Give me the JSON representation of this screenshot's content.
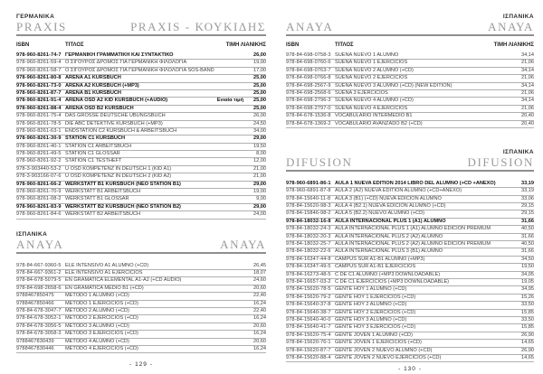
{
  "columns": {
    "isbn": "ISBN",
    "title": "ΤΙΤΛΟΣ",
    "price": "ΤΙΜΗ ΛΙΑΝΙΚΗΣ"
  },
  "accent_colors": {
    "header_title": "#9a9a9a",
    "rule": "#8f8f8f",
    "row_line": "#b0b0b0"
  },
  "pages": [
    {
      "number": "- 129 -",
      "sections": [
        {
          "id": "praxis-german",
          "left_small": "ΓΕΡΜΑΝΙΚΑ",
          "left_big": "PRAXIS",
          "right_small": "",
          "right_big": "PRAXIS - ΚΟΥΚΙΔΗΣ",
          "show_columns": true,
          "rows": [
            {
              "isbn": "978-960-8261-74-7",
              "title": "ΓΕΡΜΑΝΙΚΗ ΓΡΑΜΜΑΤΙΚΗ ΚΑΙ ΣΥΝΤΑΚΤΙΚΟ",
              "price": "26,00",
              "bold": true
            },
            {
              "isbn": "978-960-8261-59-4",
              "title": "Ο ΣΙΓΟΥΡΟΣ ΔΡΟΜΟΣ ΓΙΑ ΓΕΡΜΑΝΙΚΗ ΦΙΛΟΛΟΓΙΑ",
              "price": "19,00"
            },
            {
              "isbn": "978-960-8261-58-7",
              "title": "Ο ΣΙΓΟΥΡΟΣ ΔΡΟΜΟΣ ΓΙΑ ΓΕΡΜΑΝΙΚΗ ΦΙΛΟΛΟΓΙΑ SOS-BAND",
              "price": "17,00"
            },
            {
              "isbn": "978-960-8261-80-8",
              "title": "ARENA A1 KURSBUCH",
              "price": "25,00",
              "bold": true
            },
            {
              "isbn": "978-960-8261-73-0",
              "title": "ARENA A2 KURSBUCH (+MP3)",
              "price": "25,00",
              "bold": true
            },
            {
              "isbn": "978-960-8261-87-7",
              "title": "ARENA B1 KURSBUCH",
              "price": "25,00",
              "bold": true
            },
            {
              "isbn": "978-960-8261-91-4",
              "title": "ARENA ÖSD A2 KID KURSBUCH (+AUDIO)",
              "note": "Ενιαία τιμή",
              "price": "25,00",
              "bold": true
            },
            {
              "isbn": "978-960-8261-88-4",
              "title": "ARENA ÖSD B2 KURSBUCH",
              "price": "25,00",
              "bold": true
            },
            {
              "isbn": "978-960-8261-75-4",
              "title": "DAS GROSSE DEUTSCHE ÜBUNGSBUCH",
              "price": "26,00"
            },
            {
              "isbn": "978-960-8261-78-5",
              "title": "DIE ABC DETEKTIVE KURSBUCH (+MP3)",
              "price": "24,50"
            },
            {
              "isbn": "978-960-8261-63-1",
              "title": "ENDSTATION C2 KURSBUCH & ARBEITSBUCH",
              "price": "34,00"
            },
            {
              "isbn": "978-960-8261-30-9",
              "title": "STATION C1 KURSBUCH",
              "price": "29,00",
              "bold": true
            },
            {
              "isbn": "978-960-8261-40-1",
              "title": "STATION C1 ARBEITSBUCH",
              "price": "19,50"
            },
            {
              "isbn": "978-960-8261-49-5",
              "title": "STATION C1 GLOSSAR",
              "price": "8,00"
            },
            {
              "isbn": "978-960-8261-92-2",
              "title": "STATION C1 TESTHEFT",
              "price": "12,00"
            },
            {
              "isbn": "978-3-903440-53-2",
              "title": "Ü ÖSD KOMPETENZ IN DEUTSCH 1 (KID A1)",
              "price": "21,00"
            },
            {
              "isbn": "978-3-903166-07-6",
              "title": "Ü ÖSD KOMPETENZ IN DEUTSCH 2 (KID A2)",
              "price": "21,00"
            },
            {
              "isbn": "978-960-8261-66-2",
              "title": "WERKSTATT B1 KURSBUCH (ΝΕΟ STATION B1)",
              "price": "29,00",
              "bold": true
            },
            {
              "isbn": "978-960-8261-70-9",
              "title": "WERKSTATT B1 ARBEITSBUCH",
              "price": "19,00"
            },
            {
              "isbn": "978-960-8261-08-2",
              "title": "WERKSTATT B1 GLOSSAR",
              "price": "9,00"
            },
            {
              "isbn": "978-960-8261-83-9",
              "title": "WERKSTATT B2 KURSBUCH (ΝΕΟ STATION B2)",
              "price": "29,00",
              "bold": true
            },
            {
              "isbn": "978-960-8261-84-6",
              "title": "WERKSTATT B2 ARBEITSBUCH",
              "price": "24,00"
            }
          ]
        },
        {
          "id": "anaya-spanish-left",
          "left_small": "ΙΣΠΑΝΙΚΑ",
          "left_big": "ANAYA",
          "right_small": "",
          "right_big": "ΑΝΑΥΑ",
          "show_columns": false,
          "rows": [
            {
              "isbn": "978-84-667-9360-5",
              "title": "ELE INTENSIVO A1 ALUMNO (+CD)",
              "price": "26,45"
            },
            {
              "isbn": "978-84-667-9361-2",
              "title": "ELE INTENSIVO A1 EJERCICIOS",
              "price": "18,07"
            },
            {
              "isbn": "978-84-678-5079-5",
              "title": "EN GRAMATICA ELEMENTAL A1-A2 (+CD AUDIO)",
              "price": "24,60"
            },
            {
              "isbn": "978-84-698-2658-6",
              "title": "EN GRAMATICA MEDIO B1 (+CD)",
              "price": "20,60"
            },
            {
              "isbn": "9788467850475",
              "title": "METODO 1 ALUMNO (+CD)",
              "price": "22,40"
            },
            {
              "isbn": "9788467850466",
              "title": "METODO 1 EJERCICIOS (+CD)",
              "price": "16,24"
            },
            {
              "isbn": "978-84-678-3047-7",
              "title": "METODO 2 ALUMNO (+CD)",
              "price": "22,40"
            },
            {
              "isbn": "978-84-678-3052-1",
              "title": "METODO 2 EJERCICIOS (+CD)",
              "price": "16,24"
            },
            {
              "isbn": "978-84-678-3056-5",
              "title": "METODO 3 ALUMNO (+CD)",
              "price": "20,60"
            },
            {
              "isbn": "978-84-678-3058-3",
              "title": "METODO 3 EJERCICIOS (+CD)",
              "price": "16,24"
            },
            {
              "isbn": "9788467830439",
              "title": "METODO 4 ALUMNO (+CD)",
              "price": "20,60"
            },
            {
              "isbn": "9788467830446",
              "title": "METODO 4 EJERCICIOS (+CD)",
              "price": "16,24"
            }
          ]
        }
      ]
    },
    {
      "number": "- 130 -",
      "sections": [
        {
          "id": "anaya-spanish-right",
          "left_small": "",
          "left_big": "ANAYA",
          "right_small": "ΙΣΠΑΝΙΚΑ",
          "right_big": "ΑΝΑΥΑ",
          "show_columns": true,
          "rows": [
            {
              "isbn": "978-84-698-0758-3",
              "title": "SUENA NUEVO 1 ALUMNO",
              "price": "34,14"
            },
            {
              "isbn": "978-84-698-0760-6",
              "title": "SUENA NUEVO 1 EJERCICIOS",
              "price": "21,06"
            },
            {
              "isbn": "978-84-698-0763-7",
              "title": "SUENA NUEVO 2 ALUMNO (+CD)",
              "price": "34,14"
            },
            {
              "isbn": "978-84-698-0766-8",
              "title": "SUENA NUEVO 2 EJERCICIOS",
              "price": "21,06"
            },
            {
              "isbn": "978-84-698-2567-9",
              "title": "SUENA NUEVO 3 ALUMNO (+CD)  (NEW EDITION)",
              "price": "34,14"
            },
            {
              "isbn": "978-84-698-2568-6",
              "title": "SUENA 3 EJERCICIOS",
              "price": "21,06"
            },
            {
              "isbn": "978-84-698-2796-3",
              "title": "SUENA NUEVO 4 ALUMNO (+CD)",
              "price": "34,14"
            },
            {
              "isbn": "978-84-698-2797-0",
              "title": "SUENA NUEVO 4 EJERCICIOS",
              "price": "21,06"
            },
            {
              "isbn": "978-84-678-1536-8",
              "title": "VOCABULARIO INTERMEDIO B1",
              "price": "20,40"
            },
            {
              "isbn": "978-84-678-1369-2",
              "title": "VOCABULARIO AVANZADO B2 (+CD)",
              "price": "20,40"
            }
          ]
        },
        {
          "id": "difusion",
          "left_small": "",
          "left_big": "DIFUSION",
          "right_small": "ΙΣΠΑΝΙΚΑ",
          "right_big": "DIFUSION",
          "show_columns": false,
          "rows": [
            {
              "isbn": "978-960-6891-86-1",
              "title": "AULA 1 NUEVA EDITION 2014 LIBRO DEL ALUMNO (+CD +ANEXO)",
              "price": "33,19",
              "bold": true
            },
            {
              "isbn": "978-960-6891-87-8",
              "title": "AULA 2 (A2) NUEVA EDITION ALUMNO (+CD+ANEXO)",
              "price": "33,19"
            },
            {
              "isbn": "978-84-15640-11-8",
              "title": "AULA 3 (B1) (+CD) NUEVA EDICION ALUMNO",
              "price": "33,06"
            },
            {
              "isbn": "978-84-15620-98-3",
              "title": "AULA 4 (B2.1) NUEVA EDICION ALUMNO (+CD)",
              "price": "29,15"
            },
            {
              "isbn": "978-84-15846-98-2",
              "title": "AULA 5 (B2.2) NUEVO ALUMNO (+CD)",
              "price": "29,15"
            },
            {
              "isbn": "978-84-18032-16-8",
              "title": "AULA INTERNACIONAL PLUS 1 (A1) ALUMNO",
              "price": "31,66",
              "bold": true
            },
            {
              "isbn": "978-84-18032-24-3",
              "title": "AULA INTERNACIONAL PLUS 1 (A1) ALUMNO EDICION PREMIUM",
              "price": "40,50"
            },
            {
              "isbn": "978-84-18032-20-3",
              "title": "AULA INTERNACIONAL PLUS 2 (A2) ALUMNO",
              "price": "31,66"
            },
            {
              "isbn": "978-84-18032-25-7",
              "title": "AULA INTERNACIONAL PLUS 2 (A2) ALUMNO EDICION PREMIUM",
              "price": "40,50"
            },
            {
              "isbn": "978-84-18032-22-6",
              "title": "AULA INTERNACIONAL PLUS 3 (B1) ALUMNO",
              "price": "31,66"
            },
            {
              "isbn": "978-84-16347-44-8",
              "title": "CAMPUS SUR A1-B1 ALUMNO (+MP3)",
              "price": "34,50"
            },
            {
              "isbn": "978-84-16347-49-5",
              "title": "CAMPUS SUR A1-B1 EJERCICIOS",
              "price": "19,50"
            },
            {
              "isbn": "978-84-16273-48-5",
              "title": "C DE C1 ALUMNO (+MP3 DOWNLOADABLE)",
              "price": "34,05"
            },
            {
              "isbn": "978-84-16657-03-2",
              "title": "C DE C1 EJERCICIOS (+MP3 DOWNLOADABLE)",
              "price": "19,05"
            },
            {
              "isbn": "978-84-15620-78-5",
              "title": "GENTE HOY 1 ALUMNO (+CD)",
              "price": "34,95"
            },
            {
              "isbn": "978-84-15620-79-2",
              "title": "GENTE HOY 1 EJERCICIOS (+CD)",
              "price": "15,26"
            },
            {
              "isbn": "978-84-15640-37-8",
              "title": "GENTE HOY 2 ALUMNO (+CD)",
              "price": "33,50"
            },
            {
              "isbn": "978-84-15640-38-7",
              "title": "GENTE HOY 2 EJERCICIOS (+CD)",
              "price": "15,85"
            },
            {
              "isbn": "978-84-15640-40-0",
              "title": "GENTE HOY 3 ALUMNO (+CD)",
              "price": "33,50"
            },
            {
              "isbn": "978-84-15640-41-7",
              "title": "GENTE HOY 3 EJERCICIOS (+CD)",
              "price": "15,85"
            },
            {
              "isbn": "978-84-15620-75-4",
              "title": "GENTE JOVEN 1 ALUMNO (+CD)",
              "price": "26,90"
            },
            {
              "isbn": "978-84-15620-76-1",
              "title": "GENTE JOVEN 1 EJERCICIOS (+CD)",
              "price": "14,65"
            },
            {
              "isbn": "978-84-15620-87-7",
              "title": "GENTE JOVEN 2 NUEVO ALUMNO (+CD)",
              "price": "26,90"
            },
            {
              "isbn": "978-84-15620-88-4",
              "title": "GENTE JOVEN 2 NUEVO EJERCICIOS (+CD)",
              "price": "14,65"
            }
          ]
        }
      ]
    }
  ]
}
